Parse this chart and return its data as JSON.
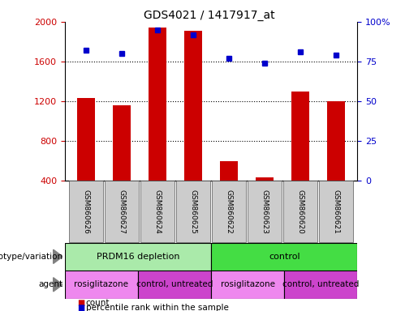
{
  "title": "GDS4021 / 1417917_at",
  "samples": [
    "GSM860626",
    "GSM860627",
    "GSM860624",
    "GSM860625",
    "GSM860622",
    "GSM860623",
    "GSM860620",
    "GSM860621"
  ],
  "counts": [
    1230,
    1160,
    1940,
    1910,
    590,
    430,
    1300,
    1200
  ],
  "percentile_ranks": [
    82,
    80,
    95,
    92,
    77,
    74,
    81,
    79
  ],
  "y_min": 400,
  "y_max": 2000,
  "y_ticks": [
    400,
    800,
    1200,
    1600,
    2000
  ],
  "right_y_ticks": [
    0,
    25,
    50,
    75,
    100
  ],
  "right_y_labels": [
    "0",
    "25",
    "50",
    "75",
    "100%"
  ],
  "bar_color": "#cc0000",
  "marker_color": "#0000cc",
  "bar_width": 0.5,
  "genotype_groups": [
    {
      "label": "PRDM16 depletion",
      "start": 0,
      "end": 4,
      "color": "#aaeaaa"
    },
    {
      "label": "control",
      "start": 4,
      "end": 8,
      "color": "#44dd44"
    }
  ],
  "agent_groups": [
    {
      "label": "rosiglitazone",
      "start": 0,
      "end": 2,
      "color": "#ee88ee"
    },
    {
      "label": "control, untreated",
      "start": 2,
      "end": 4,
      "color": "#cc44cc"
    },
    {
      "label": "rosiglitazone",
      "start": 4,
      "end": 6,
      "color": "#ee88ee"
    },
    {
      "label": "control, untreated",
      "start": 6,
      "end": 8,
      "color": "#cc44cc"
    }
  ],
  "legend_count_color": "#cc0000",
  "legend_marker_color": "#0000cc",
  "background_color": "#ffffff",
  "tick_label_color_left": "#cc0000",
  "tick_label_color_right": "#0000cc",
  "sample_box_color": "#cccccc",
  "dotted_lines": [
    800,
    1200,
    1600
  ]
}
